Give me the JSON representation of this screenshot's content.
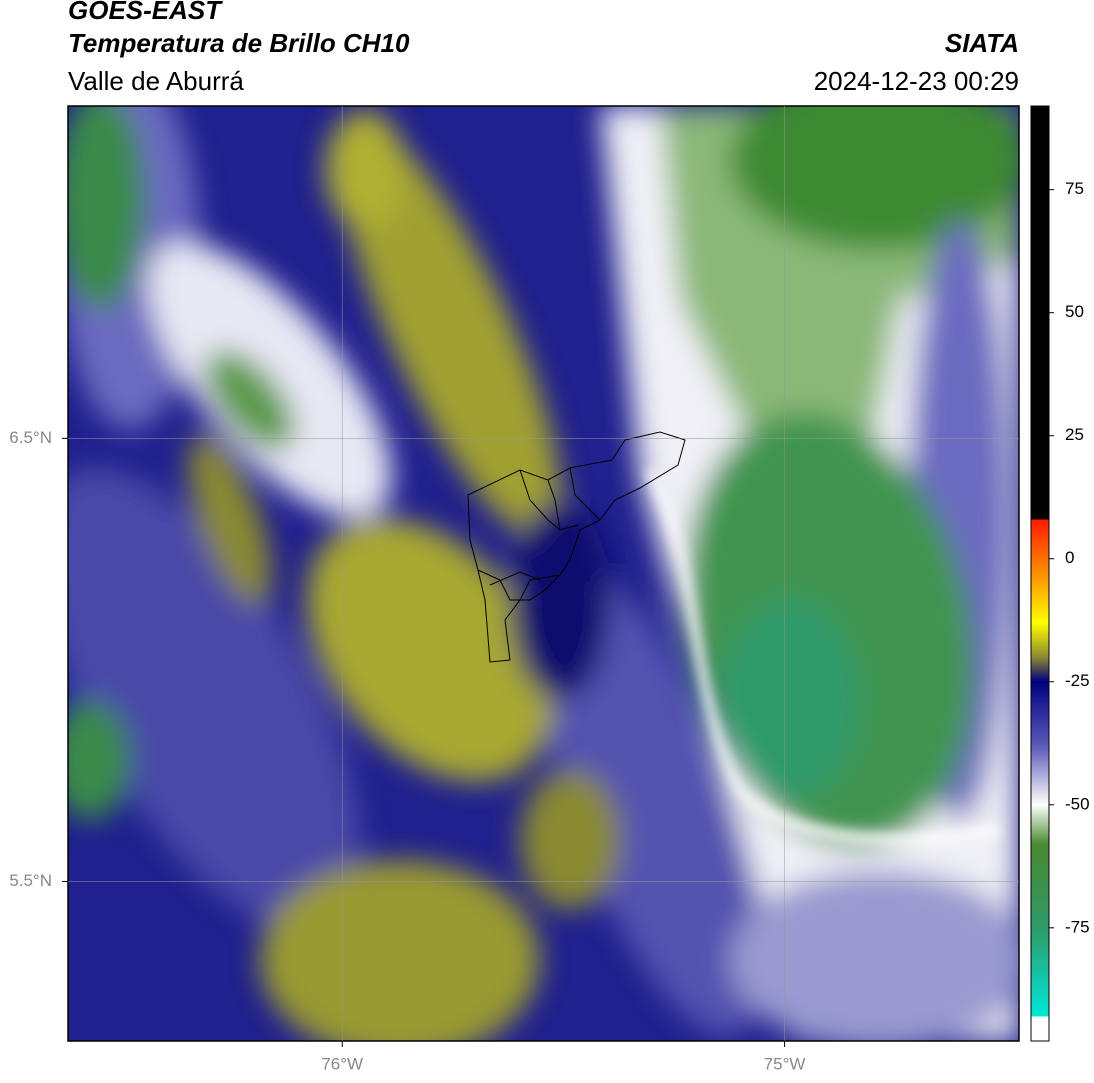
{
  "header": {
    "title": "GOES-EAST",
    "subtitle": "Temperatura de Brillo CH10",
    "region": "Valle de Aburrá",
    "agency": "SIATA",
    "datetime": "2024-12-23 00:29"
  },
  "map": {
    "xlim": [
      -76.62,
      -74.47
    ],
    "ylim": [
      5.14,
      7.25
    ],
    "xticks": [
      {
        "value": -76,
        "label": "76°W"
      },
      {
        "value": -75,
        "label": "75°W"
      }
    ],
    "yticks": [
      {
        "value": 6.5,
        "label": "6.5°N"
      },
      {
        "value": 5.5,
        "label": "5.5°N"
      }
    ],
    "grid": true
  },
  "colorbar": {
    "lim": [
      -98,
      92
    ],
    "ticks": [
      75,
      50,
      25,
      0,
      -25,
      -50,
      -75
    ],
    "stops": [
      {
        "value": 92,
        "color": "#000000"
      },
      {
        "value": 8,
        "color": "#000000"
      },
      {
        "value": 8,
        "color": "#ff1a00"
      },
      {
        "value": -4,
        "color": "#ff9900"
      },
      {
        "value": -13,
        "color": "#ffff00"
      },
      {
        "value": -20,
        "color": "#8a8a30"
      },
      {
        "value": -25,
        "color": "#000080"
      },
      {
        "value": -38,
        "color": "#5a5ab8"
      },
      {
        "value": -50,
        "color": "#ffffff"
      },
      {
        "value": -58,
        "color": "#4a8a30"
      },
      {
        "value": -75,
        "color": "#2e9a6a"
      },
      {
        "value": -93,
        "color": "#00e8d8"
      },
      {
        "value": -93,
        "color": "#ffffff"
      },
      {
        "value": -98,
        "color": "#ffffff"
      }
    ]
  }
}
